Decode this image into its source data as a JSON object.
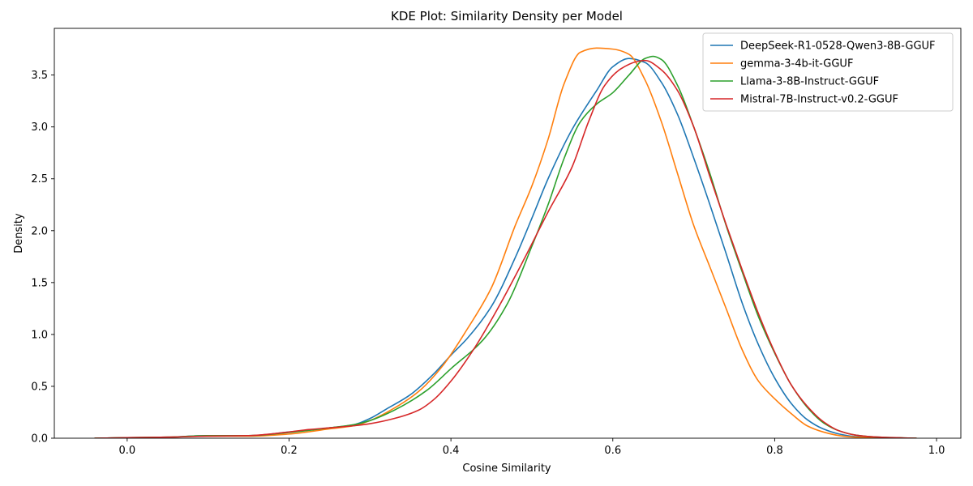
{
  "chart_data": {
    "type": "line",
    "title": "KDE Plot: Similarity Density per Model",
    "xlabel": "Cosine Similarity",
    "ylabel": "Density",
    "xlim": [
      -0.09,
      1.03
    ],
    "ylim": [
      0,
      3.95
    ],
    "xticks": [
      0.0,
      0.2,
      0.4,
      0.6,
      0.8,
      1.0
    ],
    "xtick_labels": [
      "0.0",
      "0.2",
      "0.4",
      "0.6",
      "0.8",
      "1.0"
    ],
    "yticks": [
      0.0,
      0.5,
      1.0,
      1.5,
      2.0,
      2.5,
      3.0,
      3.5
    ],
    "ytick_labels": [
      "0.0",
      "0.5",
      "1.0",
      "1.5",
      "2.0",
      "2.5",
      "3.0",
      "3.5"
    ],
    "grid": false,
    "legend_position": "top-right",
    "series": [
      {
        "name": "DeepSeek-R1-0528-Qwen3-8B-GGUF",
        "color": "#1f77b4",
        "x": [
          -0.04,
          0.0,
          0.05,
          0.1,
          0.15,
          0.2,
          0.25,
          0.28,
          0.3,
          0.32,
          0.35,
          0.38,
          0.4,
          0.42,
          0.45,
          0.48,
          0.5,
          0.52,
          0.55,
          0.58,
          0.6,
          0.62,
          0.64,
          0.66,
          0.68,
          0.7,
          0.72,
          0.74,
          0.76,
          0.78,
          0.8,
          0.82,
          0.84,
          0.86,
          0.88,
          0.9,
          0.93,
          0.975
        ],
        "y": [
          0.0,
          0.005,
          0.01,
          0.025,
          0.025,
          0.06,
          0.1,
          0.13,
          0.19,
          0.28,
          0.42,
          0.63,
          0.8,
          0.96,
          1.27,
          1.75,
          2.12,
          2.5,
          2.98,
          3.35,
          3.58,
          3.66,
          3.62,
          3.43,
          3.12,
          2.7,
          2.25,
          1.78,
          1.3,
          0.9,
          0.58,
          0.34,
          0.18,
          0.09,
          0.04,
          0.015,
          0.005,
          0.0
        ]
      },
      {
        "name": "gemma-3-4b-it-GGUF",
        "color": "#ff7f0e",
        "x": [
          -0.04,
          0.0,
          0.05,
          0.1,
          0.15,
          0.2,
          0.25,
          0.28,
          0.3,
          0.33,
          0.36,
          0.39,
          0.42,
          0.45,
          0.48,
          0.5,
          0.52,
          0.54,
          0.56,
          0.58,
          0.6,
          0.62,
          0.64,
          0.66,
          0.68,
          0.7,
          0.72,
          0.74,
          0.76,
          0.78,
          0.8,
          0.82,
          0.84,
          0.86,
          0.88,
          0.9,
          0.93,
          0.975
        ],
        "y": [
          0.0,
          0.005,
          0.01,
          0.02,
          0.02,
          0.04,
          0.09,
          0.12,
          0.17,
          0.29,
          0.45,
          0.7,
          1.05,
          1.45,
          2.06,
          2.43,
          2.88,
          3.42,
          3.72,
          3.76,
          3.75,
          3.7,
          3.45,
          3.05,
          2.55,
          2.05,
          1.65,
          1.25,
          0.85,
          0.55,
          0.38,
          0.24,
          0.12,
          0.06,
          0.025,
          0.01,
          0.004,
          0.0
        ]
      },
      {
        "name": "Llama-3-8B-Instruct-GGUF",
        "color": "#2ca02c",
        "x": [
          -0.04,
          0.0,
          0.05,
          0.1,
          0.15,
          0.2,
          0.25,
          0.28,
          0.3,
          0.33,
          0.37,
          0.4,
          0.44,
          0.47,
          0.5,
          0.52,
          0.54,
          0.56,
          0.58,
          0.6,
          0.62,
          0.64,
          0.65,
          0.66,
          0.68,
          0.7,
          0.72,
          0.74,
          0.76,
          0.78,
          0.8,
          0.82,
          0.84,
          0.86,
          0.88,
          0.9,
          0.93,
          0.975
        ],
        "y": [
          0.0,
          0.005,
          0.01,
          0.025,
          0.025,
          0.055,
          0.1,
          0.13,
          0.17,
          0.27,
          0.46,
          0.67,
          0.95,
          1.3,
          1.85,
          2.25,
          2.7,
          3.05,
          3.22,
          3.33,
          3.5,
          3.66,
          3.68,
          3.65,
          3.4,
          3.0,
          2.55,
          2.05,
          1.6,
          1.17,
          0.82,
          0.52,
          0.3,
          0.15,
          0.07,
          0.03,
          0.01,
          0.0
        ]
      },
      {
        "name": "Mistral-7B-Instruct-v0.2-GGUF",
        "color": "#d62728",
        "x": [
          -0.04,
          0.0,
          0.05,
          0.1,
          0.15,
          0.2,
          0.22,
          0.25,
          0.28,
          0.3,
          0.33,
          0.36,
          0.38,
          0.4,
          0.43,
          0.46,
          0.49,
          0.52,
          0.55,
          0.57,
          0.59,
          0.61,
          0.63,
          0.64,
          0.66,
          0.68,
          0.7,
          0.72,
          0.74,
          0.76,
          0.78,
          0.8,
          0.82,
          0.84,
          0.86,
          0.88,
          0.9,
          0.93,
          0.975
        ],
        "y": [
          0.0,
          0.005,
          0.01,
          0.02,
          0.025,
          0.06,
          0.08,
          0.1,
          0.12,
          0.14,
          0.19,
          0.27,
          0.38,
          0.55,
          0.88,
          1.28,
          1.72,
          2.18,
          2.62,
          3.05,
          3.4,
          3.56,
          3.63,
          3.64,
          3.55,
          3.35,
          3.0,
          2.52,
          2.06,
          1.62,
          1.2,
          0.83,
          0.52,
          0.31,
          0.16,
          0.07,
          0.03,
          0.01,
          0.0
        ]
      }
    ]
  }
}
